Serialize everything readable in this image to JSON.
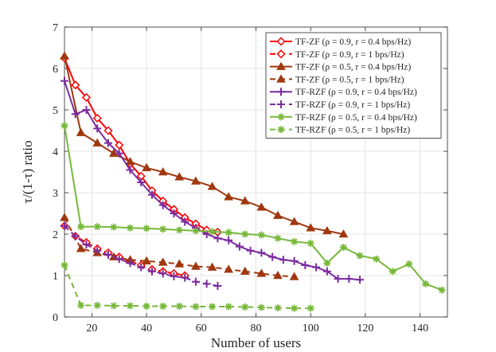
{
  "chart_data": {
    "type": "line",
    "title": "",
    "xlabel": "Number of users",
    "ylabel": "τ/(1-τ) ratio",
    "xlim": [
      10,
      150
    ],
    "ylim": [
      0,
      7
    ],
    "xticks": [
      20,
      40,
      60,
      80,
      100,
      120,
      140
    ],
    "yticks": [
      0,
      1,
      2,
      3,
      4,
      5,
      6,
      7
    ],
    "grid": true,
    "legend_position": "top-right",
    "series": [
      {
        "name": "TF-ZF (ρ = 0.9, r = 0.4 bps/Hz)",
        "color": "#ff0000",
        "dash": "solid",
        "marker": "diamond-open",
        "x": [
          10,
          14,
          18,
          22,
          26,
          30,
          34,
          38,
          42,
          46,
          50,
          54,
          58,
          62,
          66
        ],
        "y": [
          6.25,
          5.6,
          5.3,
          4.8,
          4.5,
          4.15,
          3.7,
          3.4,
          3.05,
          2.8,
          2.6,
          2.4,
          2.25,
          2.1,
          2.05
        ]
      },
      {
        "name": "TF-ZF (ρ = 0.9, r = 1 bps/Hz)",
        "color": "#ff0000",
        "dash": "dashed",
        "marker": "diamond-open",
        "x": [
          10,
          14,
          18,
          22,
          26,
          30,
          34,
          38,
          42,
          46,
          50,
          54
        ],
        "y": [
          2.2,
          1.95,
          1.8,
          1.65,
          1.55,
          1.45,
          1.35,
          1.25,
          1.15,
          1.1,
          1.05,
          1.0
        ]
      },
      {
        "name": "TF-ZF (ρ = 0.5, r = 0.4 bps/Hz)",
        "color": "#a0380f",
        "dash": "solid",
        "marker": "triangle-up",
        "x": [
          10,
          16,
          22,
          28,
          34,
          40,
          46,
          52,
          58,
          64,
          70,
          76,
          82,
          88,
          94,
          100,
          106,
          112
        ],
        "y": [
          6.3,
          4.45,
          4.2,
          3.95,
          3.75,
          3.6,
          3.5,
          3.38,
          3.28,
          3.15,
          2.9,
          2.8,
          2.65,
          2.45,
          2.3,
          2.15,
          2.08,
          2.0
        ]
      },
      {
        "name": "TF-ZF (ρ = 0.5, r = 1 bps/Hz)",
        "color": "#a0380f",
        "dash": "dashed",
        "marker": "triangle-up",
        "x": [
          10,
          16,
          22,
          28,
          34,
          40,
          46,
          52,
          58,
          64,
          70,
          76,
          82,
          88,
          94
        ],
        "y": [
          2.4,
          1.65,
          1.55,
          1.45,
          1.38,
          1.35,
          1.32,
          1.28,
          1.22,
          1.2,
          1.15,
          1.1,
          1.05,
          1.0,
          0.97
        ]
      },
      {
        "name": "TF-RZF (ρ = 0.9, r = 0.4 bps/Hz)",
        "color": "#7b2c9e",
        "dash": "solid",
        "marker": "plus",
        "x": [
          10,
          14,
          18,
          22,
          26,
          30,
          34,
          38,
          42,
          46,
          50,
          54,
          58,
          62,
          66,
          70,
          74,
          78,
          82,
          86,
          90,
          94,
          98,
          102,
          106,
          110,
          114,
          118
        ],
        "y": [
          5.7,
          4.9,
          5.0,
          4.55,
          4.2,
          3.95,
          3.55,
          3.25,
          2.95,
          2.7,
          2.5,
          2.3,
          2.15,
          2.0,
          1.9,
          1.85,
          1.7,
          1.6,
          1.55,
          1.45,
          1.38,
          1.35,
          1.25,
          1.2,
          1.1,
          0.92,
          0.92,
          0.9
        ]
      },
      {
        "name": "TF-RZF (ρ = 0.9, r = 1 bps/Hz)",
        "color": "#7b2c9e",
        "dash": "dashed",
        "marker": "plus",
        "x": [
          10,
          14,
          18,
          22,
          26,
          30,
          34,
          38,
          42,
          46,
          50,
          54,
          58,
          62,
          66
        ],
        "y": [
          2.2,
          1.95,
          1.75,
          1.6,
          1.5,
          1.4,
          1.3,
          1.2,
          1.1,
          1.05,
          0.98,
          0.95,
          0.85,
          0.8,
          0.75
        ]
      },
      {
        "name": "TF-RZF (ρ = 0.5, r = 0.4 bps/Hz)",
        "color": "#77b83a",
        "dash": "solid",
        "marker": "asterisk",
        "x": [
          10,
          16,
          22,
          28,
          34,
          40,
          46,
          52,
          58,
          64,
          70,
          76,
          82,
          88,
          94,
          100,
          106,
          112,
          118,
          124,
          130,
          136,
          142,
          148
        ],
        "y": [
          4.62,
          2.18,
          2.18,
          2.17,
          2.15,
          2.14,
          2.12,
          2.1,
          2.08,
          2.06,
          2.04,
          2.0,
          1.98,
          1.9,
          1.82,
          1.78,
          1.3,
          1.68,
          1.48,
          1.4,
          1.1,
          1.28,
          0.8,
          0.65
        ]
      },
      {
        "name": "TF-RZF (ρ = 0.5, r = 1 bps/Hz)",
        "color": "#77b83a",
        "dash": "dashed",
        "marker": "asterisk",
        "x": [
          10,
          16,
          22,
          28,
          34,
          40,
          46,
          52,
          58,
          64,
          70,
          76,
          82,
          88,
          94,
          100
        ],
        "y": [
          1.25,
          0.28,
          0.28,
          0.27,
          0.27,
          0.26,
          0.26,
          0.26,
          0.25,
          0.25,
          0.25,
          0.24,
          0.23,
          0.22,
          0.21,
          0.21
        ]
      }
    ]
  }
}
